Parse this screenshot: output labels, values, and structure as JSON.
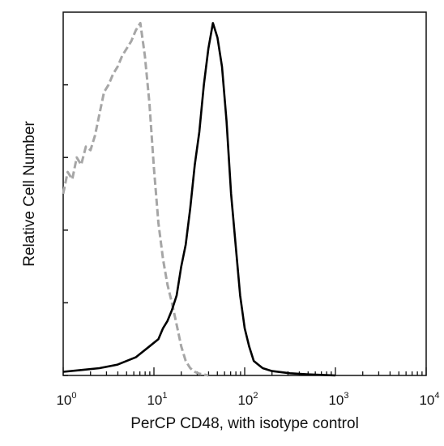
{
  "chart_data": {
    "type": "line",
    "title": "",
    "xlabel": "PerCP CD48, with isotype control",
    "ylabel": "Relative Cell Number",
    "x_scale": "log",
    "xlim": [
      1,
      10000
    ],
    "ylim": [
      0,
      1
    ],
    "x_ticks": [
      {
        "value": 1,
        "base": "10",
        "exp": "0"
      },
      {
        "value": 10,
        "base": "10",
        "exp": "1"
      },
      {
        "value": 100,
        "base": "10",
        "exp": "2"
      },
      {
        "value": 1000,
        "base": "10",
        "exp": "3"
      },
      {
        "value": 10000,
        "base": "10",
        "exp": "4"
      }
    ],
    "y_ticks": [
      0,
      0.2,
      0.4,
      0.6,
      0.8
    ],
    "grid": false,
    "legend": "none",
    "series": [
      {
        "style": "dashed",
        "color": "#a6a6a6",
        "points": [
          [
            1.0,
            0.5
          ],
          [
            1.12,
            0.56
          ],
          [
            1.26,
            0.54
          ],
          [
            1.41,
            0.6
          ],
          [
            1.58,
            0.58
          ],
          [
            1.78,
            0.63
          ],
          [
            2.0,
            0.62
          ],
          [
            2.24,
            0.66
          ],
          [
            2.51,
            0.72
          ],
          [
            2.82,
            0.78
          ],
          [
            3.16,
            0.8
          ],
          [
            3.55,
            0.83
          ],
          [
            3.98,
            0.85
          ],
          [
            4.47,
            0.88
          ],
          [
            5.01,
            0.9
          ],
          [
            5.62,
            0.92
          ],
          [
            6.31,
            0.95
          ],
          [
            7.08,
            0.97
          ],
          [
            7.94,
            0.88
          ],
          [
            8.91,
            0.75
          ],
          [
            10.0,
            0.57
          ],
          [
            11.2,
            0.42
          ],
          [
            12.6,
            0.32
          ],
          [
            14.1,
            0.25
          ],
          [
            15.8,
            0.2
          ],
          [
            17.8,
            0.14
          ],
          [
            20.0,
            0.08
          ],
          [
            22.4,
            0.04
          ],
          [
            25.1,
            0.02
          ],
          [
            28.2,
            0.01
          ],
          [
            31.6,
            0.005
          ],
          [
            39.8,
            0.0
          ]
        ]
      },
      {
        "style": "solid",
        "color": "#000000",
        "points": [
          [
            1.0,
            0.01
          ],
          [
            1.58,
            0.015
          ],
          [
            2.51,
            0.02
          ],
          [
            3.98,
            0.03
          ],
          [
            6.31,
            0.05
          ],
          [
            8.91,
            0.08
          ],
          [
            11.2,
            0.1
          ],
          [
            12.6,
            0.13
          ],
          [
            14.1,
            0.15
          ],
          [
            15.8,
            0.18
          ],
          [
            17.8,
            0.22
          ],
          [
            20.0,
            0.3
          ],
          [
            22.4,
            0.36
          ],
          [
            25.1,
            0.46
          ],
          [
            28.2,
            0.58
          ],
          [
            31.6,
            0.67
          ],
          [
            35.5,
            0.8
          ],
          [
            39.8,
            0.9
          ],
          [
            44.7,
            0.97
          ],
          [
            50.1,
            0.93
          ],
          [
            56.2,
            0.85
          ],
          [
            63.1,
            0.7
          ],
          [
            70.8,
            0.5
          ],
          [
            79.4,
            0.36
          ],
          [
            89.1,
            0.22
          ],
          [
            100.0,
            0.13
          ],
          [
            112.0,
            0.08
          ],
          [
            126.0,
            0.04
          ],
          [
            141.0,
            0.03
          ],
          [
            158.0,
            0.02
          ],
          [
            200.0,
            0.012
          ],
          [
            316.0,
            0.006
          ],
          [
            501.0,
            0.003
          ],
          [
            1000.0,
            0.0
          ]
        ]
      }
    ]
  }
}
